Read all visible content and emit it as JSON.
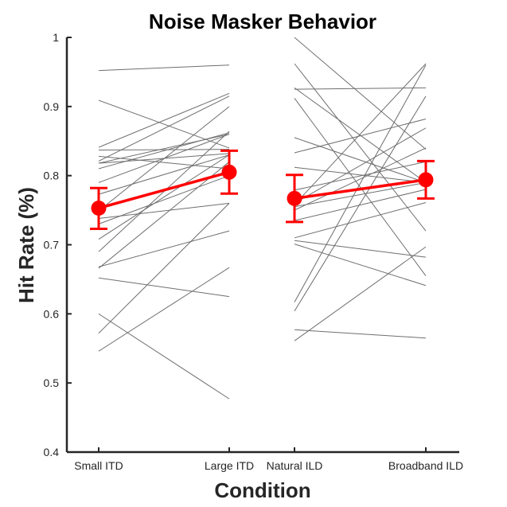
{
  "chart_data": {
    "type": "line",
    "title": "Noise Masker Behavior",
    "xlabel": "Condition",
    "ylabel": "Hit Rate (%)",
    "ylim": [
      0.4,
      1.0
    ],
    "yticks": [
      "0.4",
      "0.5",
      "0.6",
      "0.7",
      "0.8",
      "0.9",
      "1"
    ],
    "categories": [
      "Small ITD",
      "Large ITD",
      "Natural ILD",
      "Broadband ILD"
    ],
    "grid": false,
    "colors": {
      "subject": "#6e6e6e",
      "mean": "#ff0000",
      "axis": "#262626"
    },
    "subject_series": [
      {
        "pair": [
          0,
          1
        ],
        "lines": [
          [
            0.952,
            0.96
          ],
          [
            0.909,
            0.84
          ],
          [
            0.841,
            0.919
          ],
          [
            0.837,
            0.838
          ],
          [
            0.828,
            0.81
          ],
          [
            0.821,
            0.915
          ],
          [
            0.818,
            0.832
          ],
          [
            0.818,
            0.86
          ],
          [
            0.81,
            0.862
          ],
          [
            0.79,
            0.86
          ],
          [
            0.773,
            0.83
          ],
          [
            0.749,
            0.9
          ],
          [
            0.738,
            0.76
          ],
          [
            0.73,
            0.8
          ],
          [
            0.708,
            0.83
          ],
          [
            0.69,
            0.864
          ],
          [
            0.668,
            0.72
          ],
          [
            0.666,
            0.82
          ],
          [
            0.652,
            0.625
          ],
          [
            0.6,
            0.477
          ],
          [
            0.572,
            0.76
          ],
          [
            0.546,
            0.667
          ]
        ]
      },
      {
        "pair": [
          2,
          3
        ],
        "lines": [
          [
            1.0,
            0.838
          ],
          [
            0.962,
            0.72
          ],
          [
            0.927,
            0.79
          ],
          [
            0.925,
            0.927
          ],
          [
            0.912,
            0.655
          ],
          [
            0.855,
            0.79
          ],
          [
            0.833,
            0.882
          ],
          [
            0.812,
            0.79
          ],
          [
            0.779,
            0.82
          ],
          [
            0.76,
            0.869
          ],
          [
            0.758,
            0.962
          ],
          [
            0.755,
            0.79
          ],
          [
            0.75,
            0.84
          ],
          [
            0.735,
            0.78
          ],
          [
            0.71,
            0.761
          ],
          [
            0.706,
            0.682
          ],
          [
            0.701,
            0.641
          ],
          [
            0.617,
            0.96
          ],
          [
            0.604,
            0.915
          ],
          [
            0.577,
            0.565
          ],
          [
            0.561,
            0.697
          ]
        ]
      }
    ],
    "mean_series": [
      {
        "pair": [
          0,
          1
        ],
        "values": [
          0.753,
          0.805
        ],
        "err_low": [
          0.723,
          0.774
        ],
        "err_high": [
          0.782,
          0.836
        ]
      },
      {
        "pair": [
          2,
          3
        ],
        "values": [
          0.767,
          0.794
        ],
        "err_low": [
          0.733,
          0.767
        ],
        "err_high": [
          0.801,
          0.821
        ]
      }
    ]
  }
}
